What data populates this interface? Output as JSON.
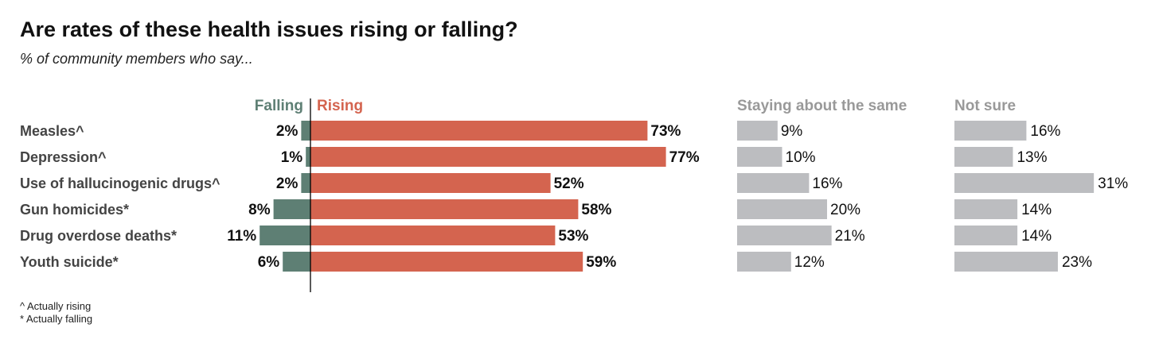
{
  "title": "Are rates of these health issues rising or falling?",
  "subtitle": "% of community members who say...",
  "footnotes": [
    "^ Actually rising",
    "* Actually falling"
  ],
  "colors": {
    "falling": "#5e7f74",
    "rising": "#d4644f",
    "neutral": "#bcbdc0",
    "label": "#111111",
    "category": "#444444",
    "header_gray": "#999999"
  },
  "chart_data": {
    "type": "bar",
    "title": "Are rates of these health issues rising or falling?",
    "subtitle": "% of community members who say...",
    "unit": "%",
    "categories": [
      "Measles^",
      "Depression^",
      "Use of hallucinogenic drugs^",
      "Gun homicides*",
      "Drug overdose deaths*",
      "Youth suicide*"
    ],
    "series": [
      {
        "name": "Falling",
        "values": [
          2,
          1,
          2,
          8,
          11,
          6
        ]
      },
      {
        "name": "Rising",
        "values": [
          73,
          77,
          52,
          58,
          53,
          59
        ]
      },
      {
        "name": "Staying about the same",
        "values": [
          9,
          10,
          16,
          20,
          21,
          12
        ]
      },
      {
        "name": "Not sure",
        "values": [
          16,
          13,
          31,
          14,
          14,
          23
        ]
      }
    ],
    "legend": "column headers above bars",
    "grid": false
  }
}
